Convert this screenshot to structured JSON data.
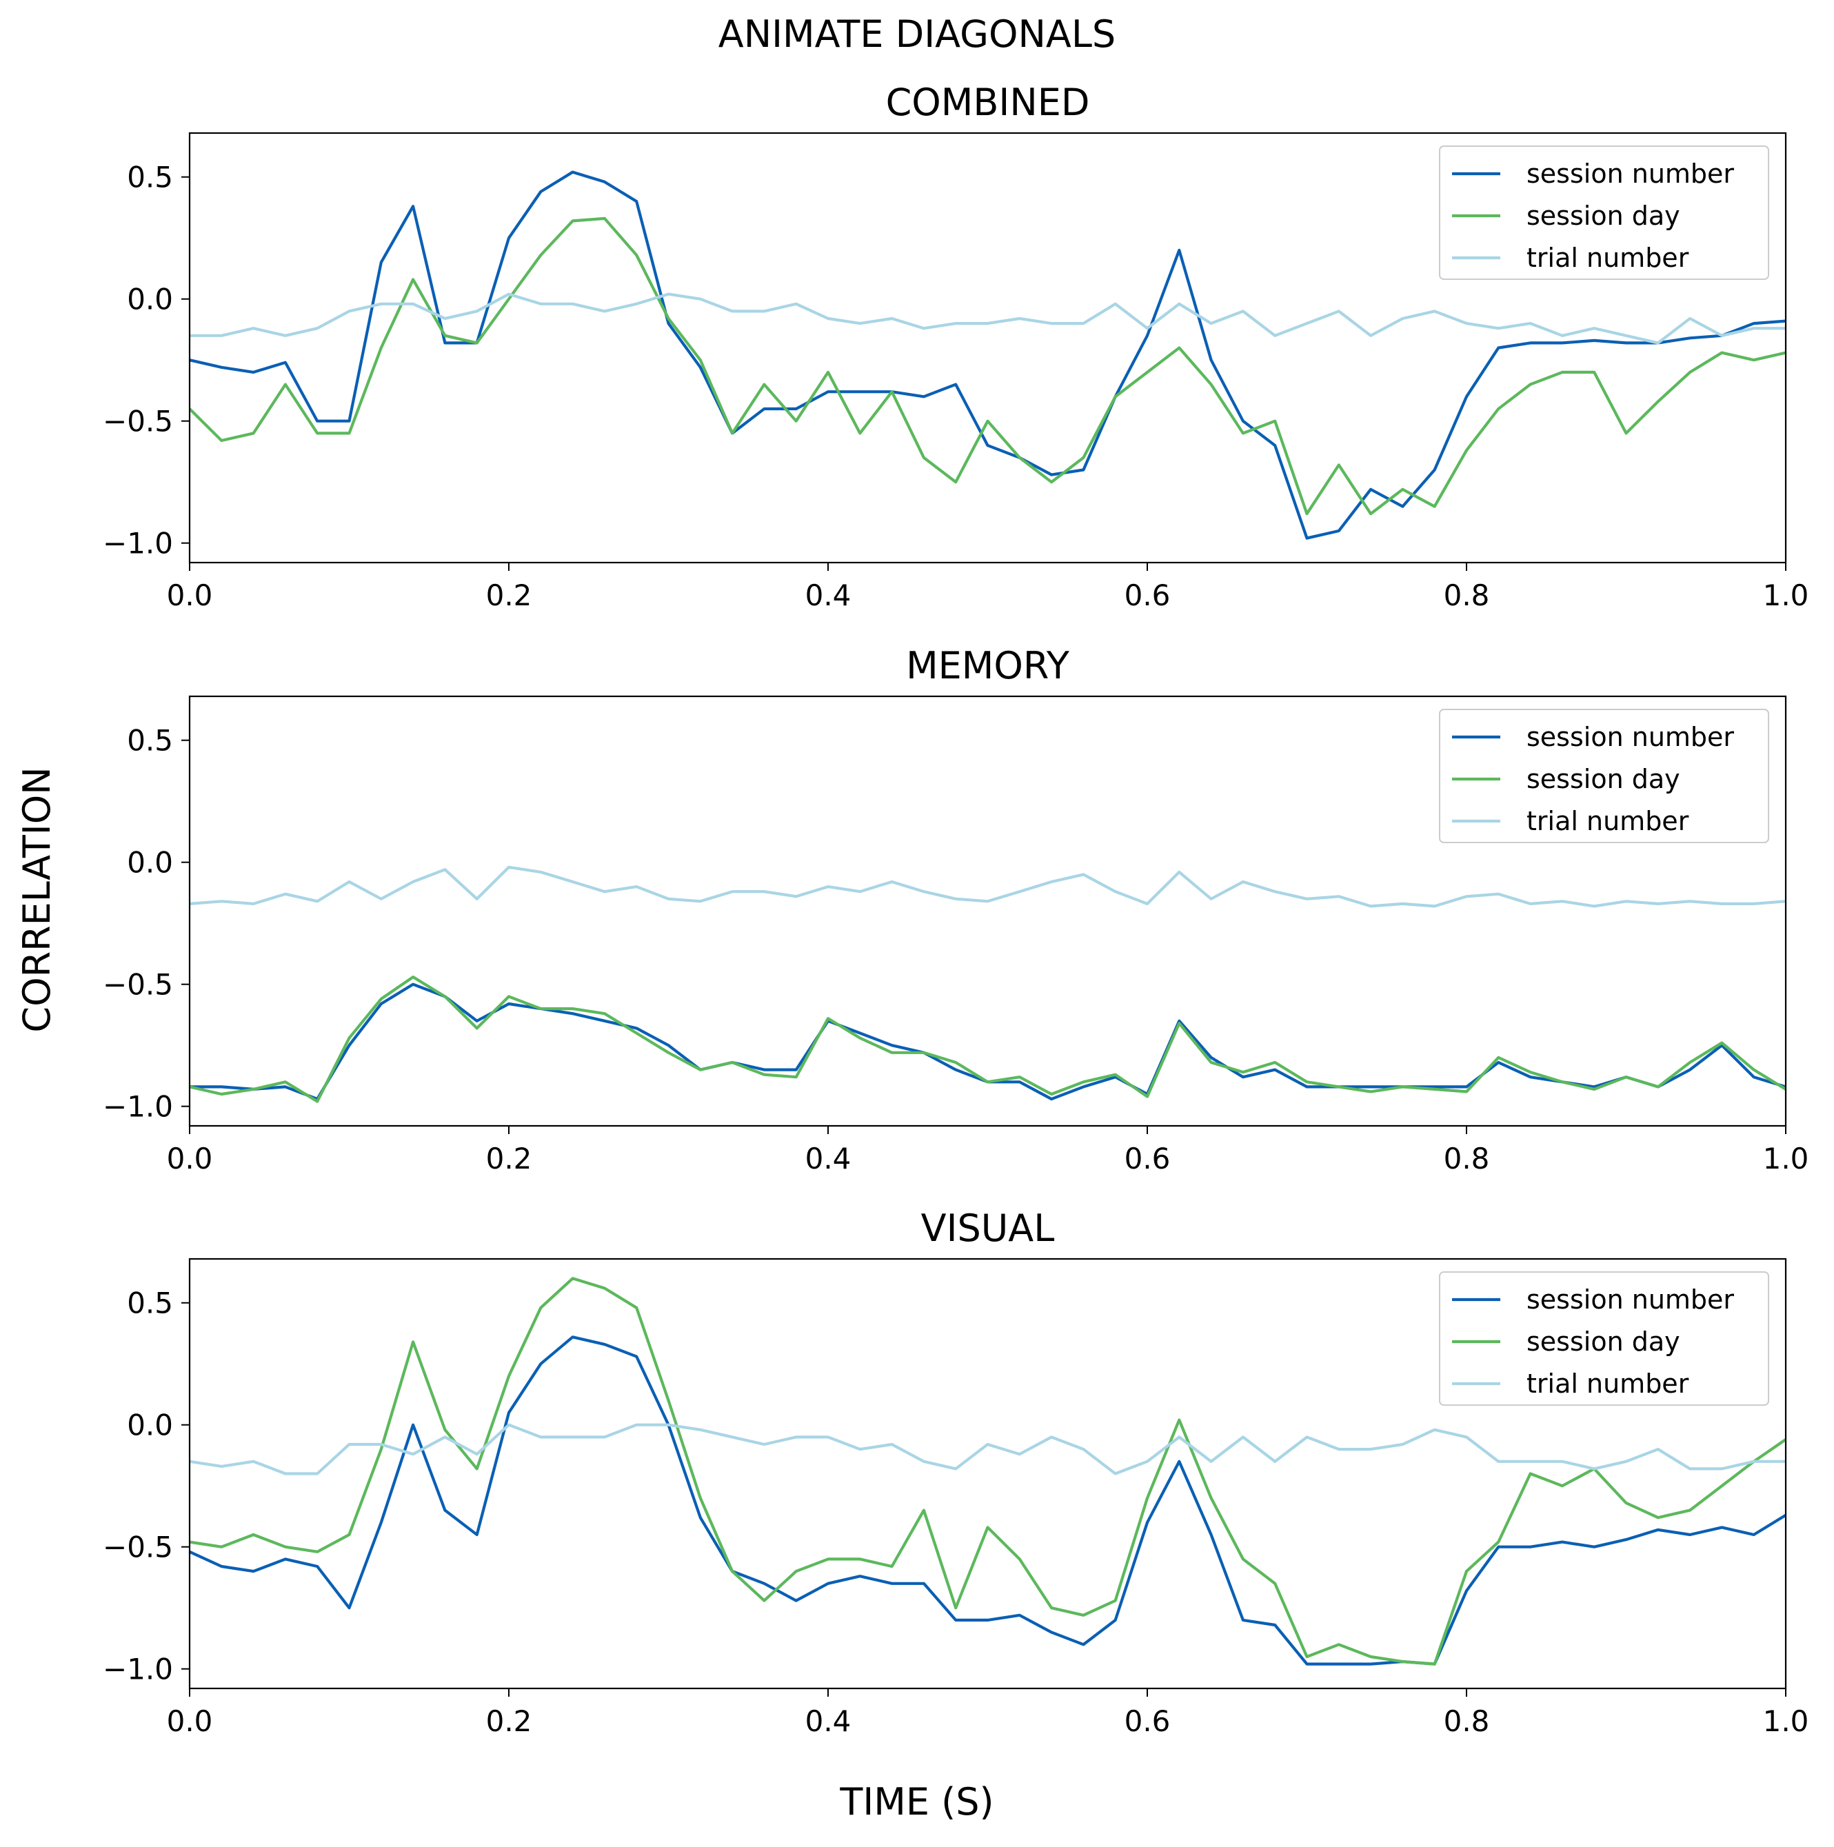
{
  "figure": {
    "suptitle": "ANIMATE DIAGONALS",
    "xlabel": "TIME (S)",
    "ylabel": "CORRELATION"
  },
  "colors": {
    "session_number": "#0a5fb4",
    "session_day": "#5cb85c",
    "trial_number": "#a9d5e5"
  },
  "chart_data": [
    {
      "type": "line",
      "title": "COMBINED",
      "xlim": [
        0.0,
        1.0
      ],
      "ylim": [
        -1.08,
        0.68
      ],
      "xticks": [
        "0.0",
        "0.2",
        "0.4",
        "0.6",
        "0.8",
        "1.0"
      ],
      "yticks": [
        "0.5",
        "0.0",
        "−0.5",
        "−1.0"
      ],
      "legend_position": "top-right",
      "x": [
        0.0,
        0.02,
        0.04,
        0.06,
        0.08,
        0.1,
        0.12,
        0.14,
        0.16,
        0.18,
        0.2,
        0.22,
        0.24,
        0.26,
        0.28,
        0.3,
        0.32,
        0.34,
        0.36,
        0.38,
        0.4,
        0.42,
        0.44,
        0.46,
        0.48,
        0.5,
        0.52,
        0.54,
        0.56,
        0.58,
        0.6,
        0.62,
        0.64,
        0.66,
        0.68,
        0.7,
        0.72,
        0.74,
        0.76,
        0.78,
        0.8,
        0.82,
        0.84,
        0.86,
        0.88,
        0.9,
        0.92,
        0.94,
        0.96,
        0.98,
        1.0
      ],
      "series": [
        {
          "name": "session number",
          "values": [
            -0.25,
            -0.28,
            -0.3,
            -0.26,
            -0.5,
            -0.5,
            0.15,
            0.38,
            -0.18,
            -0.18,
            0.25,
            0.44,
            0.52,
            0.48,
            0.4,
            -0.1,
            -0.28,
            -0.55,
            -0.45,
            -0.45,
            -0.38,
            -0.38,
            -0.38,
            -0.4,
            -0.35,
            -0.6,
            -0.65,
            -0.72,
            -0.7,
            -0.4,
            -0.15,
            0.2,
            -0.25,
            -0.5,
            -0.6,
            -0.98,
            -0.95,
            -0.78,
            -0.85,
            -0.7,
            -0.4,
            -0.2,
            -0.18,
            -0.18,
            -0.17,
            -0.18,
            -0.18,
            -0.16,
            -0.15,
            -0.1,
            -0.09
          ]
        },
        {
          "name": "session day",
          "values": [
            -0.45,
            -0.58,
            -0.55,
            -0.35,
            -0.55,
            -0.55,
            -0.2,
            0.08,
            -0.15,
            -0.18,
            0.0,
            0.18,
            0.32,
            0.33,
            0.18,
            -0.08,
            -0.25,
            -0.55,
            -0.35,
            -0.5,
            -0.3,
            -0.55,
            -0.38,
            -0.65,
            -0.75,
            -0.5,
            -0.65,
            -0.75,
            -0.65,
            -0.4,
            -0.3,
            -0.2,
            -0.35,
            -0.55,
            -0.5,
            -0.88,
            -0.68,
            -0.88,
            -0.78,
            -0.85,
            -0.62,
            -0.45,
            -0.35,
            -0.3,
            -0.3,
            -0.55,
            -0.42,
            -0.3,
            -0.22,
            -0.25,
            -0.22
          ]
        },
        {
          "name": "trial number",
          "values": [
            -0.15,
            -0.15,
            -0.12,
            -0.15,
            -0.12,
            -0.05,
            -0.02,
            -0.02,
            -0.08,
            -0.05,
            0.02,
            -0.02,
            -0.02,
            -0.05,
            -0.02,
            0.02,
            0.0,
            -0.05,
            -0.05,
            -0.02,
            -0.08,
            -0.1,
            -0.08,
            -0.12,
            -0.1,
            -0.1,
            -0.08,
            -0.1,
            -0.1,
            -0.02,
            -0.12,
            -0.02,
            -0.1,
            -0.05,
            -0.15,
            -0.1,
            -0.05,
            -0.15,
            -0.08,
            -0.05,
            -0.1,
            -0.12,
            -0.1,
            -0.15,
            -0.12,
            -0.15,
            -0.18,
            -0.08,
            -0.15,
            -0.12,
            -0.12
          ]
        }
      ]
    },
    {
      "type": "line",
      "title": "MEMORY",
      "xlim": [
        0.0,
        1.0
      ],
      "ylim": [
        -1.08,
        0.68
      ],
      "xticks": [
        "0.0",
        "0.2",
        "0.4",
        "0.6",
        "0.8",
        "1.0"
      ],
      "yticks": [
        "0.5",
        "0.0",
        "−0.5",
        "−1.0"
      ],
      "legend_position": "top-right",
      "x": [
        0.0,
        0.02,
        0.04,
        0.06,
        0.08,
        0.1,
        0.12,
        0.14,
        0.16,
        0.18,
        0.2,
        0.22,
        0.24,
        0.26,
        0.28,
        0.3,
        0.32,
        0.34,
        0.36,
        0.38,
        0.4,
        0.42,
        0.44,
        0.46,
        0.48,
        0.5,
        0.52,
        0.54,
        0.56,
        0.58,
        0.6,
        0.62,
        0.64,
        0.66,
        0.68,
        0.7,
        0.72,
        0.74,
        0.76,
        0.78,
        0.8,
        0.82,
        0.84,
        0.86,
        0.88,
        0.9,
        0.92,
        0.94,
        0.96,
        0.98,
        1.0
      ],
      "series": [
        {
          "name": "session number",
          "values": [
            -0.92,
            -0.92,
            -0.93,
            -0.92,
            -0.97,
            -0.75,
            -0.58,
            -0.5,
            -0.55,
            -0.65,
            -0.58,
            -0.6,
            -0.62,
            -0.65,
            -0.68,
            -0.75,
            -0.85,
            -0.82,
            -0.85,
            -0.85,
            -0.65,
            -0.7,
            -0.75,
            -0.78,
            -0.85,
            -0.9,
            -0.9,
            -0.97,
            -0.92,
            -0.88,
            -0.95,
            -0.65,
            -0.8,
            -0.88,
            -0.85,
            -0.92,
            -0.92,
            -0.92,
            -0.92,
            -0.92,
            -0.92,
            -0.82,
            -0.88,
            -0.9,
            -0.92,
            -0.88,
            -0.92,
            -0.85,
            -0.75,
            -0.88,
            -0.92
          ]
        },
        {
          "name": "session day",
          "values": [
            -0.92,
            -0.95,
            -0.93,
            -0.9,
            -0.98,
            -0.72,
            -0.56,
            -0.47,
            -0.55,
            -0.68,
            -0.55,
            -0.6,
            -0.6,
            -0.62,
            -0.7,
            -0.78,
            -0.85,
            -0.82,
            -0.87,
            -0.88,
            -0.64,
            -0.72,
            -0.78,
            -0.78,
            -0.82,
            -0.9,
            -0.88,
            -0.95,
            -0.9,
            -0.87,
            -0.96,
            -0.66,
            -0.82,
            -0.86,
            -0.82,
            -0.9,
            -0.92,
            -0.94,
            -0.92,
            -0.93,
            -0.94,
            -0.8,
            -0.86,
            -0.9,
            -0.93,
            -0.88,
            -0.92,
            -0.82,
            -0.74,
            -0.85,
            -0.93
          ]
        },
        {
          "name": "trial number",
          "values": [
            -0.17,
            -0.16,
            -0.17,
            -0.13,
            -0.16,
            -0.08,
            -0.15,
            -0.08,
            -0.03,
            -0.15,
            -0.02,
            -0.04,
            -0.08,
            -0.12,
            -0.1,
            -0.15,
            -0.16,
            -0.12,
            -0.12,
            -0.14,
            -0.1,
            -0.12,
            -0.08,
            -0.12,
            -0.15,
            -0.16,
            -0.12,
            -0.08,
            -0.05,
            -0.12,
            -0.17,
            -0.04,
            -0.15,
            -0.08,
            -0.12,
            -0.15,
            -0.14,
            -0.18,
            -0.17,
            -0.18,
            -0.14,
            -0.13,
            -0.17,
            -0.16,
            -0.18,
            -0.16,
            -0.17,
            -0.16,
            -0.17,
            -0.17,
            -0.16
          ]
        }
      ]
    },
    {
      "type": "line",
      "title": "VISUAL",
      "xlim": [
        0.0,
        1.0
      ],
      "ylim": [
        -1.08,
        0.68
      ],
      "xticks": [
        "0.0",
        "0.2",
        "0.4",
        "0.6",
        "0.8",
        "1.0"
      ],
      "yticks": [
        "0.5",
        "0.0",
        "−0.5",
        "−1.0"
      ],
      "legend_position": "top-right",
      "x": [
        0.0,
        0.02,
        0.04,
        0.06,
        0.08,
        0.1,
        0.12,
        0.14,
        0.16,
        0.18,
        0.2,
        0.22,
        0.24,
        0.26,
        0.28,
        0.3,
        0.32,
        0.34,
        0.36,
        0.38,
        0.4,
        0.42,
        0.44,
        0.46,
        0.48,
        0.5,
        0.52,
        0.54,
        0.56,
        0.58,
        0.6,
        0.62,
        0.64,
        0.66,
        0.68,
        0.7,
        0.72,
        0.74,
        0.76,
        0.78,
        0.8,
        0.82,
        0.84,
        0.86,
        0.88,
        0.9,
        0.92,
        0.94,
        0.96,
        0.98,
        1.0
      ],
      "series": [
        {
          "name": "session number",
          "values": [
            -0.52,
            -0.58,
            -0.6,
            -0.55,
            -0.58,
            -0.75,
            -0.4,
            0.0,
            -0.35,
            -0.45,
            0.05,
            0.25,
            0.36,
            0.33,
            0.28,
            0.0,
            -0.38,
            -0.6,
            -0.65,
            -0.72,
            -0.65,
            -0.62,
            -0.65,
            -0.65,
            -0.8,
            -0.8,
            -0.78,
            -0.85,
            -0.9,
            -0.8,
            -0.4,
            -0.15,
            -0.45,
            -0.8,
            -0.82,
            -0.98,
            -0.98,
            -0.98,
            -0.97,
            -0.98,
            -0.68,
            -0.5,
            -0.5,
            -0.48,
            -0.5,
            -0.47,
            -0.43,
            -0.45,
            -0.42,
            -0.45,
            -0.37
          ]
        },
        {
          "name": "session day",
          "values": [
            -0.48,
            -0.5,
            -0.45,
            -0.5,
            -0.52,
            -0.45,
            -0.1,
            0.34,
            -0.02,
            -0.18,
            0.2,
            0.48,
            0.6,
            0.56,
            0.48,
            0.1,
            -0.3,
            -0.6,
            -0.72,
            -0.6,
            -0.55,
            -0.55,
            -0.58,
            -0.35,
            -0.75,
            -0.42,
            -0.55,
            -0.75,
            -0.78,
            -0.72,
            -0.3,
            0.02,
            -0.3,
            -0.55,
            -0.65,
            -0.95,
            -0.9,
            -0.95,
            -0.97,
            -0.98,
            -0.6,
            -0.48,
            -0.2,
            -0.25,
            -0.18,
            -0.32,
            -0.38,
            -0.35,
            -0.25,
            -0.15,
            -0.06
          ]
        },
        {
          "name": "trial number",
          "values": [
            -0.15,
            -0.17,
            -0.15,
            -0.2,
            -0.2,
            -0.08,
            -0.08,
            -0.12,
            -0.05,
            -0.12,
            0.0,
            -0.05,
            -0.05,
            -0.05,
            0.0,
            0.0,
            -0.02,
            -0.05,
            -0.08,
            -0.05,
            -0.05,
            -0.1,
            -0.08,
            -0.15,
            -0.18,
            -0.08,
            -0.12,
            -0.05,
            -0.1,
            -0.2,
            -0.15,
            -0.05,
            -0.15,
            -0.05,
            -0.15,
            -0.05,
            -0.1,
            -0.1,
            -0.08,
            -0.02,
            -0.05,
            -0.15,
            -0.15,
            -0.15,
            -0.18,
            -0.15,
            -0.1,
            -0.18,
            -0.18,
            -0.15,
            -0.15
          ]
        }
      ]
    }
  ]
}
